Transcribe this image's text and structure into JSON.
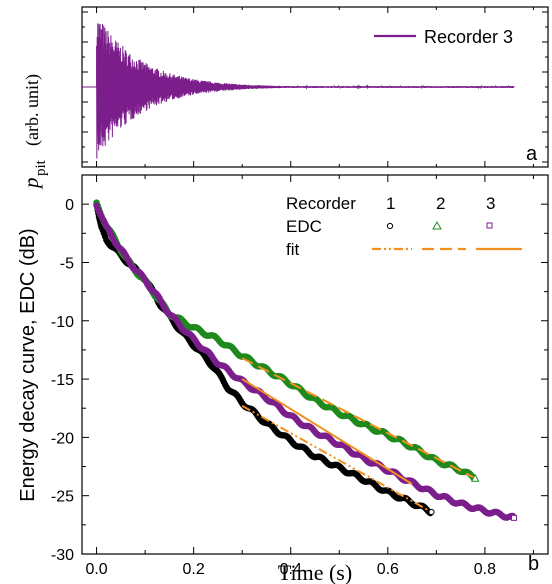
{
  "chart_data": [
    {
      "panel": "a",
      "type": "line",
      "ylabel_main": "p",
      "ylabel_sub": "pit",
      "ylabel_unit": "(arb. unit)",
      "xlim": [
        -0.03,
        0.93
      ],
      "ylim": [
        -1.05,
        1.05
      ],
      "series": [
        {
          "name": "Recorder 3",
          "color": "#7b1e8c",
          "signal": {
            "onset": 0.0,
            "end": 0.86,
            "peak": 0.98,
            "decay_time": 0.09,
            "floor": 0.012
          }
        }
      ],
      "panel_label": "a"
    },
    {
      "panel": "b",
      "type": "scatter",
      "xlabel": "Time (s)",
      "ylabel": "Energy decay curve, EDC (dB)",
      "xlim": [
        -0.03,
        0.93
      ],
      "ylim": [
        -30,
        2.5
      ],
      "xticks": [
        "0.0",
        "0.2",
        "0.4",
        "0.6",
        "0.8"
      ],
      "xtick_values": [
        0.0,
        0.2,
        0.4,
        0.6,
        0.8
      ],
      "yticks": [
        "0",
        "-5",
        "-10",
        "-15",
        "-20",
        "-25",
        "-30"
      ],
      "ytick_values": [
        0,
        -5,
        -10,
        -15,
        -20,
        -25,
        -30
      ],
      "legend": {
        "header_label": "Recorder",
        "columns": [
          "1",
          "2",
          "3"
        ],
        "edc_label": "EDC",
        "fit_label": "fit",
        "position": "top-right"
      },
      "series": [
        {
          "name": "1",
          "color": "#000000",
          "marker": "circle",
          "points": [
            [
              0.0,
              0.0
            ],
            [
              0.005,
              -1.2
            ],
            [
              0.01,
              -2.1
            ],
            [
              0.02,
              -3.0
            ],
            [
              0.03,
              -3.5
            ],
            [
              0.05,
              -4.4
            ],
            [
              0.08,
              -5.6
            ],
            [
              0.1,
              -6.4
            ],
            [
              0.13,
              -8.5
            ],
            [
              0.15,
              -9.6
            ],
            [
              0.18,
              -11.2
            ],
            [
              0.21,
              -12.5
            ],
            [
              0.24,
              -13.9
            ],
            [
              0.27,
              -15.7
            ],
            [
              0.3,
              -17.0
            ],
            [
              0.35,
              -18.8
            ],
            [
              0.4,
              -20.3
            ],
            [
              0.45,
              -21.6
            ],
            [
              0.5,
              -22.6
            ],
            [
              0.55,
              -23.6
            ],
            [
              0.6,
              -24.7
            ],
            [
              0.65,
              -25.6
            ],
            [
              0.69,
              -26.4
            ]
          ],
          "fit": {
            "x": [
              0.3,
              0.69
            ],
            "y": [
              -17.3,
              -26.4
            ],
            "style": "dash-dot"
          }
        },
        {
          "name": "2",
          "color": "#1e8a1e",
          "marker": "triangle",
          "points": [
            [
              0.0,
              0.0
            ],
            [
              0.01,
              -0.9
            ],
            [
              0.02,
              -1.8
            ],
            [
              0.04,
              -3.2
            ],
            [
              0.06,
              -4.6
            ],
            [
              0.08,
              -5.7
            ],
            [
              0.1,
              -6.6
            ],
            [
              0.13,
              -8.3
            ],
            [
              0.15,
              -9.4
            ],
            [
              0.2,
              -10.6
            ],
            [
              0.25,
              -11.6
            ],
            [
              0.3,
              -13.0
            ],
            [
              0.35,
              -14.2
            ],
            [
              0.4,
              -15.4
            ],
            [
              0.45,
              -16.8
            ],
            [
              0.5,
              -17.9
            ],
            [
              0.55,
              -18.9
            ],
            [
              0.6,
              -19.8
            ],
            [
              0.65,
              -20.8
            ],
            [
              0.7,
              -22.0
            ],
            [
              0.75,
              -22.8
            ],
            [
              0.78,
              -23.5
            ]
          ],
          "fit": {
            "x": [
              0.3,
              0.78
            ],
            "y": [
              -13.2,
              -23.5
            ],
            "style": "dash"
          }
        },
        {
          "name": "3",
          "color": "#7b1e8c",
          "marker": "square",
          "points": [
            [
              0.0,
              0.0
            ],
            [
              0.01,
              -1.0
            ],
            [
              0.02,
              -2.0
            ],
            [
              0.04,
              -3.3
            ],
            [
              0.06,
              -4.5
            ],
            [
              0.08,
              -5.6
            ],
            [
              0.1,
              -6.5
            ],
            [
              0.13,
              -8.2
            ],
            [
              0.15,
              -9.4
            ],
            [
              0.2,
              -11.6
            ],
            [
              0.25,
              -13.6
            ],
            [
              0.3,
              -15.2
            ],
            [
              0.35,
              -16.6
            ],
            [
              0.4,
              -18.2
            ],
            [
              0.45,
              -19.5
            ],
            [
              0.5,
              -20.6
            ],
            [
              0.55,
              -21.8
            ],
            [
              0.6,
              -22.8
            ],
            [
              0.65,
              -23.9
            ],
            [
              0.7,
              -24.9
            ],
            [
              0.75,
              -25.7
            ],
            [
              0.8,
              -26.3
            ],
            [
              0.86,
              -26.9
            ]
          ],
          "fit": {
            "x": [
              0.3,
              0.65
            ],
            "y": [
              -15.0,
              -24.0
            ],
            "style": "solid"
          }
        }
      ],
      "fit_color": "#f0901e",
      "panel_label": "b"
    }
  ]
}
